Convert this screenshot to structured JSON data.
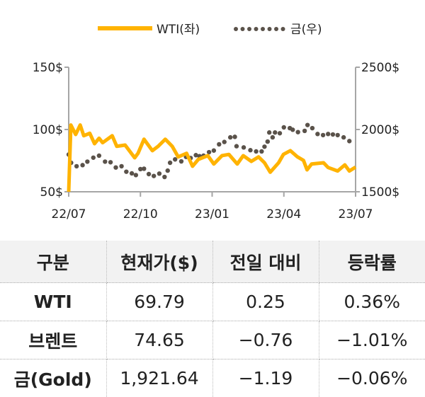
{
  "chart_data": {
    "type": "line",
    "title": "",
    "legend": {
      "position": "top-center",
      "items": [
        {
          "name": "WTI(좌)",
          "style": "solid",
          "color": "#FFB300"
        },
        {
          "name": "금(우)",
          "style": "dotted",
          "color": "#5A524A"
        }
      ]
    },
    "x_ticks": [
      "22/07",
      "22/10",
      "23/01",
      "23/04",
      "23/07"
    ],
    "x_unit": "months since 22/07",
    "xlim": [
      0,
      12
    ],
    "y_left": {
      "ticks": [
        "150$",
        "100$",
        "50$"
      ],
      "ylim": [
        50,
        150
      ]
    },
    "y_right": {
      "ticks": [
        "2500$",
        "2000$",
        "1500$"
      ],
      "ylim": [
        1500,
        2500
      ]
    },
    "series": [
      {
        "name": "WTI(좌)",
        "axis": "left",
        "x": [
          0,
          0.09,
          0.29,
          0.48,
          0.63,
          0.88,
          1.08,
          1.27,
          1.42,
          1.82,
          2.01,
          2.36,
          2.76,
          2.9,
          3.15,
          3.5,
          3.74,
          4.04,
          4.33,
          4.58,
          4.93,
          5.18,
          5.42,
          5.82,
          6.07,
          6.41,
          6.7,
          7.05,
          7.3,
          7.64,
          7.94,
          8.19,
          8.43,
          8.78,
          8.98,
          9.27,
          9.57,
          9.82,
          9.97,
          10.16,
          10.66,
          10.85,
          11.25,
          11.55,
          11.74,
          12
        ],
        "y": [
          50,
          103.6,
          96,
          103.6,
          95,
          97,
          88.6,
          93,
          89.4,
          95,
          86.5,
          87.5,
          77.3,
          80.9,
          92.2,
          83,
          86.5,
          92.2,
          86.5,
          78,
          80.9,
          70.5,
          76,
          79,
          72.3,
          79,
          80,
          72.3,
          79,
          74.4,
          78,
          73.3,
          65.7,
          73.3,
          80,
          83,
          78,
          75.2,
          67.6,
          72.3,
          73.3,
          69.5,
          66.7,
          71.6,
          66.7,
          69.79
        ]
      },
      {
        "name": "금(우)",
        "axis": "right",
        "x": [
          0,
          0.1,
          0.33,
          0.58,
          0.78,
          1.03,
          1.27,
          1.52,
          1.75,
          1.97,
          2.21,
          2.41,
          2.64,
          2.81,
          3.0,
          3.15,
          3.35,
          3.56,
          3.79,
          4.01,
          4.14,
          4.24,
          4.45,
          4.71,
          4.91,
          5.1,
          5.32,
          5.47,
          5.64,
          5.87,
          6.07,
          6.29,
          6.51,
          6.76,
          6.95,
          7.02,
          7.32,
          7.6,
          7.84,
          8.07,
          8.19,
          8.32,
          8.39,
          8.53,
          8.63,
          8.83,
          9.0,
          9.25,
          9.37,
          9.59,
          9.87,
          9.99,
          10.19,
          10.41,
          10.64,
          10.85,
          11.05,
          11.25,
          11.5,
          11.74
        ],
        "y": [
          1799,
          1733,
          1705,
          1714,
          1742,
          1774,
          1790,
          1742,
          1737,
          1695,
          1705,
          1661,
          1648,
          1634,
          1682,
          1685,
          1642,
          1627,
          1646,
          1619,
          1670,
          1733,
          1760,
          1744,
          1780,
          1771,
          1794,
          1786,
          1790,
          1818,
          1831,
          1881,
          1900,
          1937,
          1941,
          1866,
          1856,
          1834,
          1824,
          1824,
          1862,
          1903,
          1976,
          1937,
          1976,
          1970,
          2017,
          2011,
          1998,
          1979,
          1989,
          2036,
          2011,
          1964,
          1955,
          1964,
          1960,
          1955,
          1937,
          1907
        ]
      }
    ]
  },
  "table": {
    "headers": [
      "구분",
      "현재가($)",
      "전일 대비",
      "등락률"
    ],
    "rows": [
      [
        "WTI",
        "69.79",
        "0.25",
        "0.36%"
      ],
      [
        "브렌트",
        "74.65",
        "−0.76",
        "−1.01%"
      ],
      [
        "금(Gold)",
        "1,921.64",
        "−1.19",
        "−0.06%"
      ]
    ]
  }
}
